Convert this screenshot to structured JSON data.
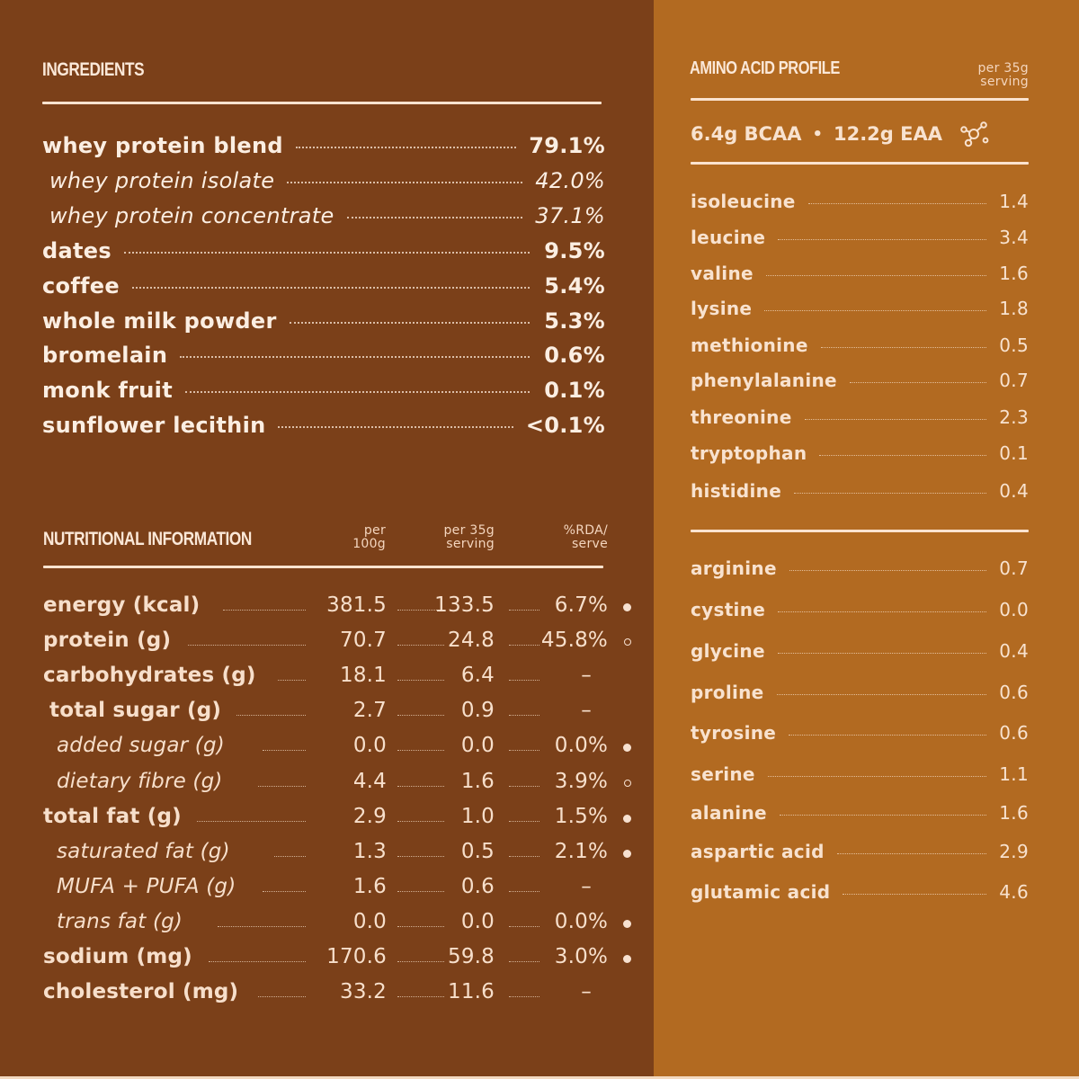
{
  "colors": {
    "left_panel": "#7b4019",
    "right_panel": "#b26a21",
    "text": "#fbe6d6",
    "rule": "#fbe3cf"
  },
  "ingredients": {
    "title": "INGREDIENTS",
    "items": [
      {
        "name": "whey protein blend",
        "value": "79.1%",
        "level": 0
      },
      {
        "name": "whey protein isolate",
        "value": "42.0%",
        "level": 1
      },
      {
        "name": "whey protein concentrate",
        "value": "37.1%",
        "level": 1
      },
      {
        "name": "dates",
        "value": "9.5%",
        "level": 0
      },
      {
        "name": "coffee",
        "value": "5.4%",
        "level": 0
      },
      {
        "name": "whole milk powder",
        "value": "5.3%",
        "level": 0
      },
      {
        "name": "bromelain",
        "value": "0.6%",
        "level": 0
      },
      {
        "name": "monk fruit",
        "value": "0.1%",
        "level": 0
      },
      {
        "name": "sunflower lecithin",
        "value": "<0.1%",
        "level": 0
      }
    ]
  },
  "nutrition": {
    "title": "NUTRITIONAL INFORMATION",
    "columns": {
      "per100_l1": "per",
      "per100_l2": "100g",
      "perserve_l1": "per 35g",
      "perserve_l2": "serving",
      "rda_l1": "%RDA/",
      "rda_l2": "serve"
    },
    "rows": [
      {
        "name": "energy (kcal)",
        "per100g": "381.5",
        "per_serving": "133.5",
        "rda": "6.7%",
        "marker": "filled",
        "level": 0
      },
      {
        "name": "protein (g)",
        "per100g": "70.7",
        "per_serving": "24.8",
        "rda": "45.8%",
        "marker": "hollow",
        "level": 0
      },
      {
        "name": "carbohydrates (g)",
        "per100g": "18.1",
        "per_serving": "6.4",
        "rda": "–",
        "marker": "none",
        "level": 0
      },
      {
        "name": "total sugar (g)",
        "per100g": "2.7",
        "per_serving": "0.9",
        "rda": "–",
        "marker": "none",
        "level": 1
      },
      {
        "name": "added sugar (g)",
        "per100g": "0.0",
        "per_serving": "0.0",
        "rda": "0.0%",
        "marker": "filled",
        "level": 2
      },
      {
        "name": "dietary fibre (g)",
        "per100g": "4.4",
        "per_serving": "1.6",
        "rda": "3.9%",
        "marker": "hollow",
        "level": 2
      },
      {
        "name": "total fat (g)",
        "per100g": "2.9",
        "per_serving": "1.0",
        "rda": "1.5%",
        "marker": "filled",
        "level": 0
      },
      {
        "name": "saturated fat (g)",
        "per100g": "1.3",
        "per_serving": "0.5",
        "rda": "2.1%",
        "marker": "filled",
        "level": 2
      },
      {
        "name": "MUFA + PUFA (g)",
        "per100g": "1.6",
        "per_serving": "0.6",
        "rda": "–",
        "marker": "none",
        "level": 2
      },
      {
        "name": "trans fat (g)",
        "per100g": "0.0",
        "per_serving": "0.0",
        "rda": "0.0%",
        "marker": "filled",
        "level": 2
      },
      {
        "name": "sodium (mg)",
        "per100g": "170.6",
        "per_serving": "59.8",
        "rda": "3.0%",
        "marker": "filled",
        "level": 0
      },
      {
        "name": "cholesterol (mg)",
        "per100g": "33.2",
        "per_serving": "11.6",
        "rda": "–",
        "marker": "none",
        "level": 0
      }
    ]
  },
  "amino": {
    "title": "AMINO ACID PROFILE",
    "unit_l1": "per 35g",
    "unit_l2": "serving",
    "bcaa": "6.4g BCAA",
    "separator": "•",
    "eaa": "12.2g EAA",
    "icon": "molecule-icon",
    "essential": [
      {
        "name": "isoleucine",
        "value": "1.4"
      },
      {
        "name": "leucine",
        "value": "3.4"
      },
      {
        "name": "valine",
        "value": "1.6"
      },
      {
        "name": "lysine",
        "value": "1.8"
      },
      {
        "name": "methionine",
        "value": "0.5"
      },
      {
        "name": "phenylalanine",
        "value": "0.7"
      },
      {
        "name": "threonine",
        "value": "2.3"
      },
      {
        "name": "tryptophan",
        "value": "0.1"
      },
      {
        "name": "histidine",
        "value": "0.4"
      }
    ],
    "non_essential": [
      {
        "name": "arginine",
        "value": "0.7"
      },
      {
        "name": "cystine",
        "value": "0.0"
      },
      {
        "name": "glycine",
        "value": "0.4"
      },
      {
        "name": "proline",
        "value": "0.6"
      },
      {
        "name": "tyrosine",
        "value": "0.6"
      },
      {
        "name": "serine",
        "value": "1.1"
      },
      {
        "name": "alanine",
        "value": "1.6"
      },
      {
        "name": "aspartic acid",
        "value": "2.9"
      },
      {
        "name": "glutamic acid",
        "value": "4.6"
      }
    ]
  }
}
